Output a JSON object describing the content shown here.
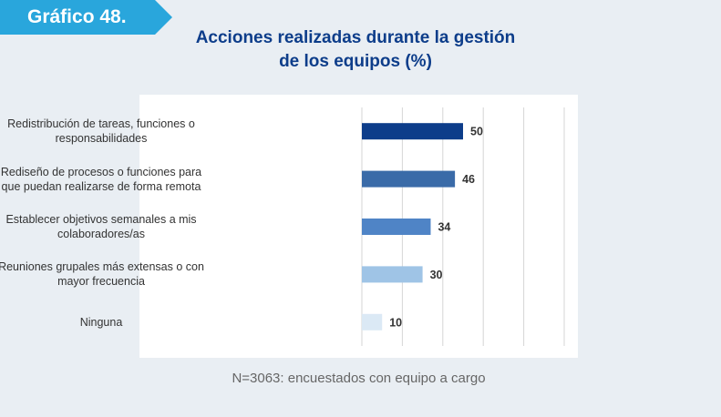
{
  "badge": {
    "label": "Gráfico 48.",
    "color": "#29a6dc"
  },
  "footnote": "N=3063: encuestados con equipo a cargo",
  "chart_data": {
    "type": "bar",
    "orientation": "horizontal",
    "title_lines": [
      "Acciones realizadas durante la gestión",
      "de los equipos (%)"
    ],
    "categories": [
      [
        "Redistribución de tareas, funciones o",
        "responsabilidades"
      ],
      [
        "Rediseño de procesos o funciones para",
        "que puedan realizarse de forma remota"
      ],
      [
        "Establecer objetivos semanales a mis",
        "colaboradores/as"
      ],
      [
        "Reuniones grupales más extensas o con",
        "mayor frecuencia"
      ],
      [
        "Ninguna"
      ]
    ],
    "values": [
      50,
      46,
      34,
      30,
      10
    ],
    "data_labels": [
      "50",
      "46",
      "34",
      "30",
      "10"
    ],
    "bar_colors": [
      "#0d3d8a",
      "#3a6ba8",
      "#4f84c6",
      "#9fc4e6",
      "#dbe9f5"
    ],
    "xlim": [
      0,
      100
    ],
    "grid": true,
    "legend": "none"
  }
}
